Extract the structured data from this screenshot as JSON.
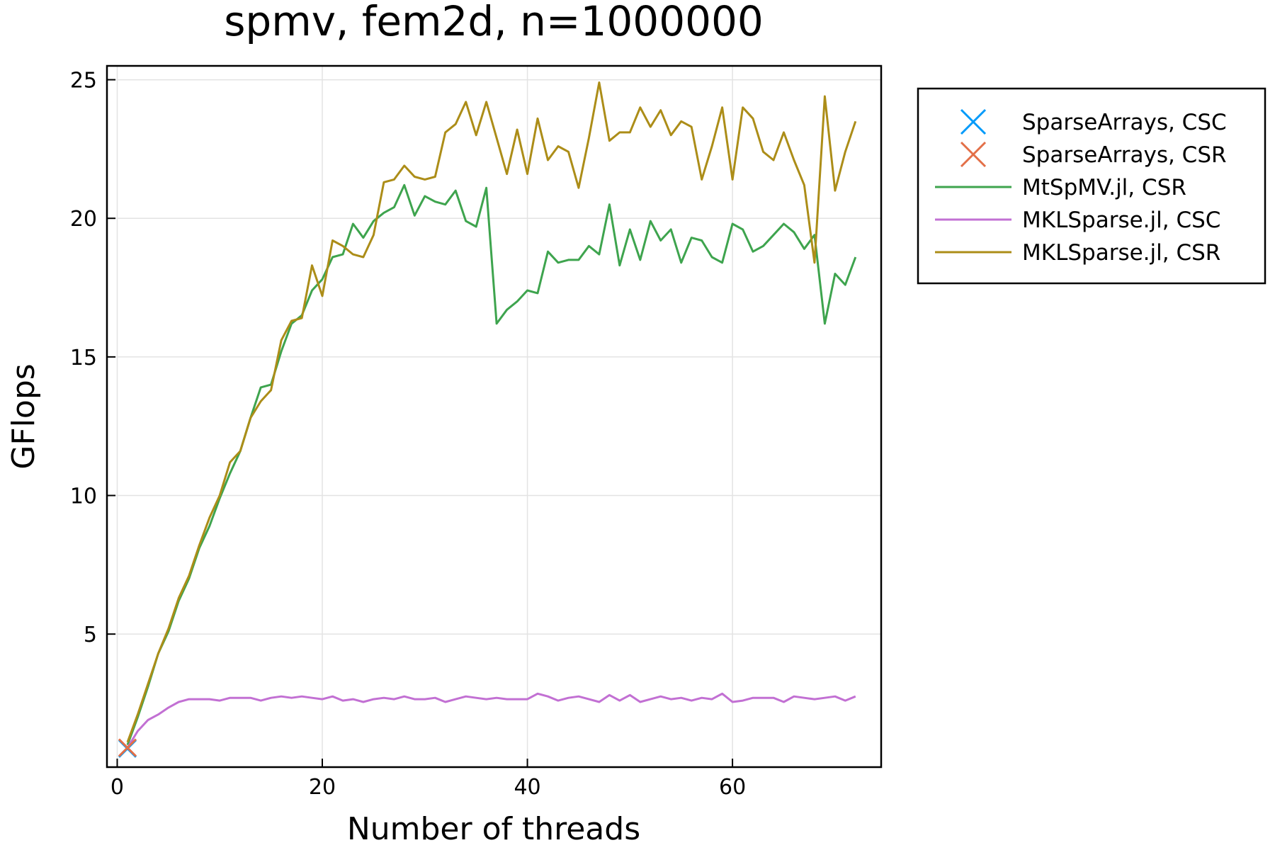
{
  "chart_data": {
    "type": "line",
    "title": "spmv, fem2d, n=1000000",
    "xlabel": "Number of threads",
    "ylabel": "GFlops",
    "xlim": [
      -1,
      74.5
    ],
    "ylim": [
      0.2,
      25.5
    ],
    "xticks": [
      "0",
      "20",
      "40",
      "60"
    ],
    "xtick_values": [
      0,
      20,
      40,
      60
    ],
    "yticks": [
      "5",
      "10",
      "15",
      "20",
      "25"
    ],
    "ytick_values": [
      5,
      10,
      15,
      20,
      25
    ],
    "grid": true,
    "legend_position": "outer top-right",
    "series": [
      {
        "name": "SparseArrays, CSC",
        "kind": "marker",
        "color": "#009AFA",
        "x": [
          1
        ],
        "y": [
          0.87
        ]
      },
      {
        "name": "SparseArrays, CSR",
        "kind": "marker",
        "color": "#E36F47",
        "x": [
          1
        ],
        "y": [
          0.9
        ]
      },
      {
        "name": "MtSpMV.jl, CSR",
        "kind": "line",
        "color": "#3EA44E",
        "x": [
          1,
          2,
          3,
          4,
          5,
          6,
          7,
          8,
          9,
          10,
          11,
          12,
          13,
          14,
          15,
          16,
          17,
          18,
          19,
          20,
          21,
          22,
          23,
          24,
          25,
          26,
          27,
          28,
          29,
          30,
          31,
          32,
          33,
          34,
          35,
          36,
          37,
          38,
          39,
          40,
          41,
          42,
          43,
          44,
          45,
          46,
          47,
          48,
          49,
          50,
          51,
          52,
          53,
          54,
          55,
          56,
          57,
          58,
          59,
          60,
          61,
          62,
          63,
          64,
          65,
          66,
          67,
          68,
          69,
          70,
          71,
          72
        ],
        "y": [
          1.0,
          2.0,
          3.1,
          4.3,
          5.1,
          6.2,
          7.0,
          8.1,
          8.9,
          9.9,
          10.8,
          11.6,
          12.8,
          13.9,
          14.0,
          15.2,
          16.2,
          16.5,
          17.4,
          17.8,
          18.6,
          18.7,
          19.8,
          19.3,
          19.9,
          20.2,
          20.4,
          21.2,
          20.1,
          20.8,
          20.6,
          20.5,
          21.0,
          19.9,
          19.7,
          21.1,
          16.2,
          16.7,
          17.0,
          17.4,
          17.3,
          18.8,
          18.4,
          18.5,
          18.5,
          19.0,
          18.7,
          20.5,
          18.3,
          19.6,
          18.5,
          19.9,
          19.2,
          19.6,
          18.4,
          19.3,
          19.2,
          18.6,
          18.4,
          19.8,
          19.6,
          18.8,
          19.0,
          19.4,
          19.8,
          19.5,
          18.9,
          19.4,
          16.2,
          18.0,
          17.6,
          18.6
        ]
      },
      {
        "name": "MKLSparse.jl, CSC",
        "kind": "line",
        "color": "#C270D3",
        "x": [
          1,
          2,
          3,
          4,
          5,
          6,
          7,
          8,
          9,
          10,
          11,
          12,
          13,
          14,
          15,
          16,
          17,
          18,
          19,
          20,
          21,
          22,
          23,
          24,
          25,
          26,
          27,
          28,
          29,
          30,
          31,
          32,
          33,
          34,
          35,
          36,
          37,
          38,
          39,
          40,
          41,
          42,
          43,
          44,
          45,
          46,
          47,
          48,
          49,
          50,
          51,
          52,
          53,
          54,
          55,
          56,
          57,
          58,
          59,
          60,
          61,
          62,
          63,
          64,
          65,
          66,
          67,
          68,
          69,
          70,
          71,
          72
        ],
        "y": [
          0.9,
          1.5,
          1.9,
          2.1,
          2.35,
          2.55,
          2.65,
          2.65,
          2.65,
          2.6,
          2.7,
          2.7,
          2.7,
          2.6,
          2.7,
          2.75,
          2.7,
          2.75,
          2.7,
          2.65,
          2.75,
          2.6,
          2.65,
          2.55,
          2.65,
          2.7,
          2.65,
          2.75,
          2.65,
          2.65,
          2.7,
          2.55,
          2.65,
          2.75,
          2.7,
          2.65,
          2.7,
          2.65,
          2.65,
          2.65,
          2.85,
          2.75,
          2.6,
          2.7,
          2.75,
          2.65,
          2.55,
          2.8,
          2.6,
          2.8,
          2.55,
          2.65,
          2.75,
          2.65,
          2.7,
          2.6,
          2.7,
          2.65,
          2.85,
          2.55,
          2.6,
          2.7,
          2.7,
          2.7,
          2.55,
          2.75,
          2.7,
          2.65,
          2.7,
          2.75,
          2.6,
          2.75
        ]
      },
      {
        "name": "MKLSparse.jl, CSR",
        "kind": "line",
        "color": "#AC8D18",
        "x": [
          1,
          2,
          3,
          4,
          5,
          6,
          7,
          8,
          9,
          10,
          11,
          12,
          13,
          14,
          15,
          16,
          17,
          18,
          19,
          20,
          21,
          22,
          23,
          24,
          25,
          26,
          27,
          28,
          29,
          30,
          31,
          32,
          33,
          34,
          35,
          36,
          37,
          38,
          39,
          40,
          41,
          42,
          43,
          44,
          45,
          46,
          47,
          48,
          49,
          50,
          51,
          52,
          53,
          54,
          55,
          56,
          57,
          58,
          59,
          60,
          61,
          62,
          63,
          64,
          65,
          66,
          67,
          68,
          69,
          70,
          71,
          72
        ],
        "y": [
          1.1,
          2.1,
          3.2,
          4.3,
          5.2,
          6.3,
          7.1,
          8.2,
          9.2,
          10.0,
          11.2,
          11.6,
          12.8,
          13.4,
          13.8,
          15.6,
          16.3,
          16.4,
          18.3,
          17.2,
          19.2,
          19.0,
          18.7,
          18.6,
          19.4,
          21.3,
          21.4,
          21.9,
          21.5,
          21.4,
          21.5,
          23.1,
          23.4,
          24.2,
          23.0,
          24.2,
          22.9,
          21.6,
          23.2,
          21.6,
          23.6,
          22.1,
          22.6,
          22.4,
          21.1,
          22.9,
          24.9,
          22.8,
          23.1,
          23.1,
          24.0,
          23.3,
          23.9,
          23.0,
          23.5,
          23.3,
          21.4,
          22.6,
          24.0,
          21.4,
          24.0,
          23.6,
          22.4,
          22.1,
          23.1,
          22.1,
          21.2,
          18.4,
          24.4,
          21.0,
          22.4,
          23.5
        ]
      }
    ]
  }
}
